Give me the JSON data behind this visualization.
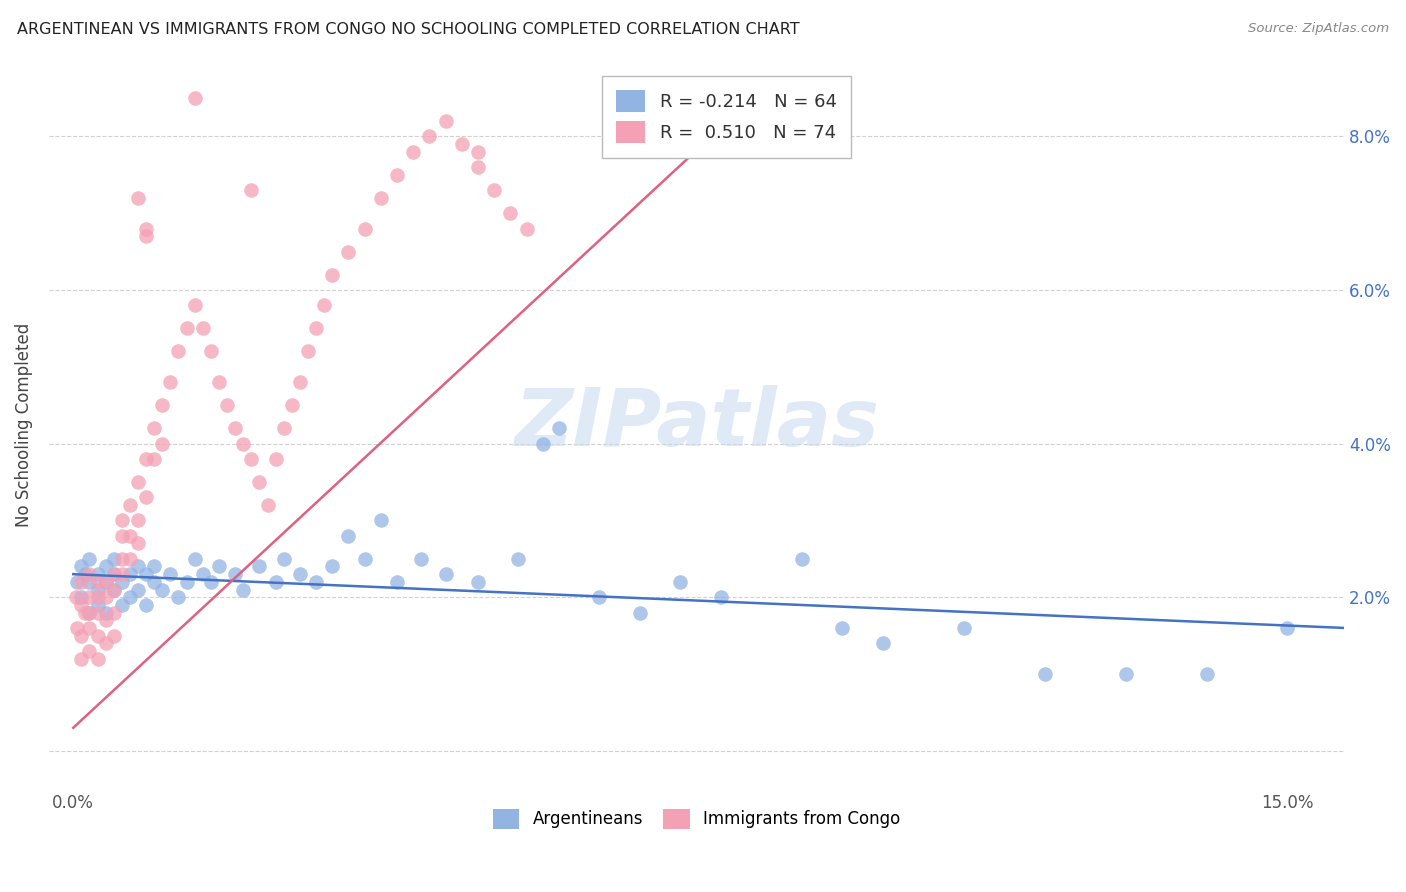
{
  "title": "ARGENTINEAN VS IMMIGRANTS FROM CONGO NO SCHOOLING COMPLETED CORRELATION CHART",
  "source": "Source: ZipAtlas.com",
  "xlim": [
    -0.003,
    0.157
  ],
  "ylim": [
    -0.005,
    0.09
  ],
  "x_ticks": [
    0.0,
    0.03,
    0.06,
    0.09,
    0.12,
    0.15
  ],
  "x_labels": [
    "0.0%",
    "",
    "",
    "",
    "",
    "15.0%"
  ],
  "y_ticks": [
    0.0,
    0.02,
    0.04,
    0.06,
    0.08
  ],
  "y_labels": [
    "",
    "2.0%",
    "4.0%",
    "6.0%",
    "8.0%"
  ],
  "blue_color": "#92B4E3",
  "pink_color": "#F4A0B5",
  "blue_line_color": "#4472C4",
  "pink_line_color": "#E06080",
  "R_blue": -0.214,
  "N_blue": 64,
  "R_pink": 0.51,
  "N_pink": 74,
  "watermark": "ZIPatlas",
  "legend_label_blue": "Argentineans",
  "legend_label_pink": "Immigrants from Congo",
  "blue_x": [
    0.0005,
    0.001,
    0.001,
    0.0015,
    0.002,
    0.002,
    0.002,
    0.003,
    0.003,
    0.003,
    0.004,
    0.004,
    0.004,
    0.005,
    0.005,
    0.005,
    0.006,
    0.006,
    0.007,
    0.007,
    0.008,
    0.008,
    0.009,
    0.009,
    0.01,
    0.01,
    0.011,
    0.012,
    0.013,
    0.014,
    0.015,
    0.016,
    0.017,
    0.018,
    0.02,
    0.021,
    0.023,
    0.025,
    0.026,
    0.028,
    0.03,
    0.032,
    0.034,
    0.036,
    0.038,
    0.04,
    0.043,
    0.046,
    0.05,
    0.055,
    0.058,
    0.06,
    0.065,
    0.07,
    0.075,
    0.08,
    0.09,
    0.095,
    0.1,
    0.11,
    0.12,
    0.13,
    0.14,
    0.15
  ],
  "blue_y": [
    0.022,
    0.024,
    0.02,
    0.023,
    0.022,
    0.025,
    0.018,
    0.023,
    0.021,
    0.019,
    0.024,
    0.022,
    0.018,
    0.023,
    0.021,
    0.025,
    0.022,
    0.019,
    0.023,
    0.02,
    0.024,
    0.021,
    0.023,
    0.019,
    0.022,
    0.024,
    0.021,
    0.023,
    0.02,
    0.022,
    0.025,
    0.023,
    0.022,
    0.024,
    0.023,
    0.021,
    0.024,
    0.022,
    0.025,
    0.023,
    0.022,
    0.024,
    0.028,
    0.025,
    0.03,
    0.022,
    0.025,
    0.023,
    0.022,
    0.025,
    0.04,
    0.042,
    0.02,
    0.018,
    0.022,
    0.02,
    0.025,
    0.016,
    0.014,
    0.016,
    0.01,
    0.01,
    0.01,
    0.016
  ],
  "pink_x": [
    0.0003,
    0.0005,
    0.001,
    0.001,
    0.001,
    0.001,
    0.0015,
    0.002,
    0.002,
    0.002,
    0.002,
    0.002,
    0.003,
    0.003,
    0.003,
    0.003,
    0.003,
    0.004,
    0.004,
    0.004,
    0.004,
    0.005,
    0.005,
    0.005,
    0.005,
    0.006,
    0.006,
    0.006,
    0.006,
    0.007,
    0.007,
    0.007,
    0.008,
    0.008,
    0.008,
    0.009,
    0.009,
    0.01,
    0.01,
    0.011,
    0.011,
    0.012,
    0.013,
    0.014,
    0.015,
    0.016,
    0.017,
    0.018,
    0.019,
    0.02,
    0.021,
    0.022,
    0.023,
    0.024,
    0.025,
    0.026,
    0.027,
    0.028,
    0.029,
    0.03,
    0.031,
    0.032,
    0.034,
    0.036,
    0.038,
    0.04,
    0.042,
    0.044,
    0.046,
    0.048,
    0.05,
    0.052,
    0.054,
    0.056
  ],
  "pink_y": [
    0.02,
    0.016,
    0.022,
    0.019,
    0.015,
    0.012,
    0.018,
    0.02,
    0.023,
    0.018,
    0.016,
    0.013,
    0.022,
    0.02,
    0.018,
    0.015,
    0.012,
    0.022,
    0.02,
    0.017,
    0.014,
    0.023,
    0.021,
    0.018,
    0.015,
    0.025,
    0.03,
    0.028,
    0.023,
    0.032,
    0.028,
    0.025,
    0.035,
    0.03,
    0.027,
    0.038,
    0.033,
    0.042,
    0.038,
    0.045,
    0.04,
    0.048,
    0.052,
    0.055,
    0.058,
    0.055,
    0.052,
    0.048,
    0.045,
    0.042,
    0.04,
    0.038,
    0.035,
    0.032,
    0.038,
    0.042,
    0.045,
    0.048,
    0.052,
    0.055,
    0.058,
    0.062,
    0.065,
    0.068,
    0.072,
    0.075,
    0.078,
    0.08,
    0.082,
    0.079,
    0.076,
    0.073,
    0.07,
    0.068
  ],
  "pink_outlier_x": [
    0.008,
    0.009,
    0.009,
    0.015,
    0.022,
    0.05
  ],
  "pink_outlier_y": [
    0.072,
    0.068,
    0.067,
    0.085,
    0.073,
    0.078
  ]
}
